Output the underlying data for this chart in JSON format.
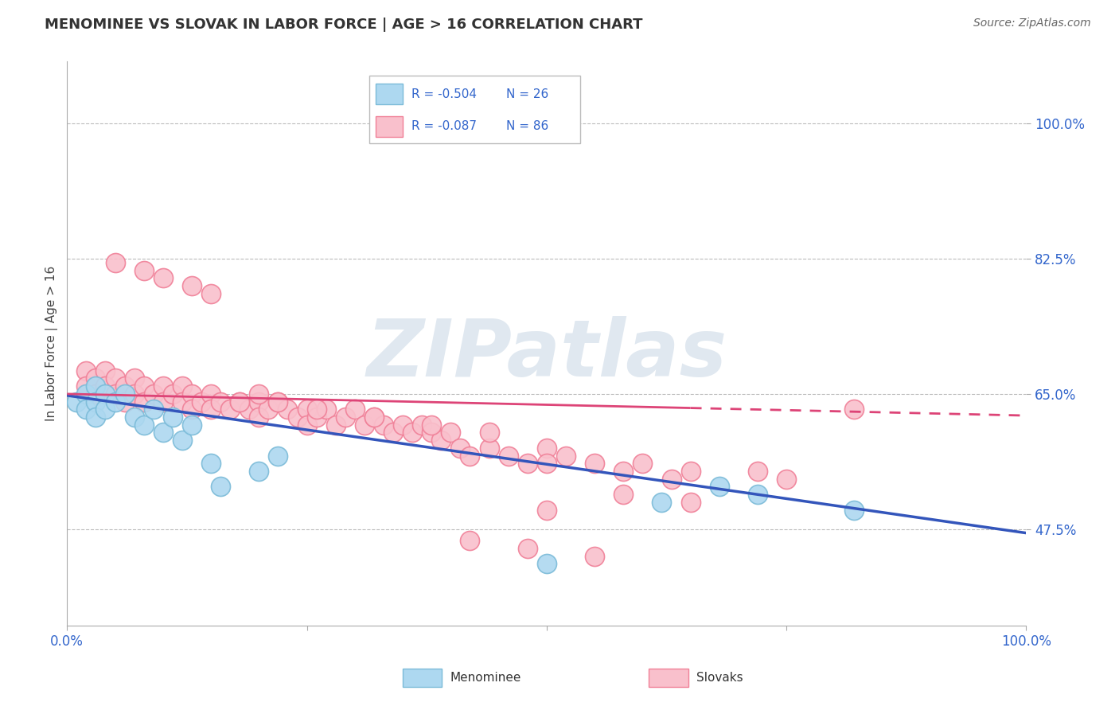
{
  "title": "MENOMINEE VS SLOVAK IN LABOR FORCE | AGE > 16 CORRELATION CHART",
  "source": "Source: ZipAtlas.com",
  "ylabel": "In Labor Force | Age > 16",
  "xlim": [
    0.0,
    1.0
  ],
  "ylim": [
    0.35,
    1.08
  ],
  "ytick_positions": [
    0.475,
    0.65,
    0.825,
    1.0
  ],
  "ytick_labels": [
    "47.5%",
    "65.0%",
    "82.5%",
    "100.0%"
  ],
  "menominee_color": "#ADD8F0",
  "menominee_edge": "#7BBBD8",
  "slovak_color": "#F9C0CC",
  "slovak_edge": "#F08098",
  "line_blue": "#3355BB",
  "line_pink": "#DD4477",
  "R_menominee": "-0.504",
  "N_menominee": "26",
  "R_slovak": "-0.087",
  "N_slovak": "86",
  "legend_label_1": "Menominee",
  "legend_label_2": "Slovaks",
  "watermark": "ZIPatlas",
  "background": "#FFFFFF",
  "grid_color": "#BBBBBB",
  "blue_intercept": 0.648,
  "blue_slope": -0.178,
  "pink_intercept": 0.65,
  "pink_slope": -0.028,
  "menominee_x": [
    0.01,
    0.02,
    0.02,
    0.03,
    0.03,
    0.03,
    0.04,
    0.04,
    0.05,
    0.06,
    0.07,
    0.08,
    0.09,
    0.1,
    0.11,
    0.12,
    0.13,
    0.15,
    0.16,
    0.2,
    0.22,
    0.5,
    0.62,
    0.68,
    0.72,
    0.82
  ],
  "menominee_y": [
    0.64,
    0.65,
    0.63,
    0.66,
    0.64,
    0.62,
    0.65,
    0.63,
    0.64,
    0.65,
    0.62,
    0.61,
    0.63,
    0.6,
    0.62,
    0.59,
    0.61,
    0.56,
    0.53,
    0.55,
    0.57,
    0.43,
    0.51,
    0.53,
    0.52,
    0.5
  ],
  "slovak_x": [
    0.02,
    0.02,
    0.03,
    0.03,
    0.04,
    0.04,
    0.05,
    0.05,
    0.06,
    0.06,
    0.07,
    0.07,
    0.08,
    0.08,
    0.09,
    0.1,
    0.1,
    0.11,
    0.12,
    0.12,
    0.13,
    0.13,
    0.14,
    0.15,
    0.15,
    0.16,
    0.17,
    0.18,
    0.19,
    0.2,
    0.2,
    0.21,
    0.22,
    0.23,
    0.24,
    0.25,
    0.25,
    0.26,
    0.27,
    0.28,
    0.29,
    0.3,
    0.31,
    0.32,
    0.33,
    0.34,
    0.35,
    0.36,
    0.37,
    0.38,
    0.39,
    0.4,
    0.41,
    0.42,
    0.44,
    0.46,
    0.48,
    0.5,
    0.5,
    0.52,
    0.55,
    0.58,
    0.6,
    0.63,
    0.65,
    0.72,
    0.75,
    0.05,
    0.08,
    0.1,
    0.13,
    0.15,
    0.18,
    0.2,
    0.22,
    0.26,
    0.32,
    0.38,
    0.44,
    0.5,
    0.58,
    0.65,
    0.42,
    0.48,
    0.55,
    0.82
  ],
  "slovak_y": [
    0.68,
    0.66,
    0.67,
    0.65,
    0.68,
    0.66,
    0.67,
    0.65,
    0.66,
    0.64,
    0.67,
    0.65,
    0.66,
    0.64,
    0.65,
    0.66,
    0.64,
    0.65,
    0.66,
    0.64,
    0.65,
    0.63,
    0.64,
    0.65,
    0.63,
    0.64,
    0.63,
    0.64,
    0.63,
    0.64,
    0.62,
    0.63,
    0.64,
    0.63,
    0.62,
    0.63,
    0.61,
    0.62,
    0.63,
    0.61,
    0.62,
    0.63,
    0.61,
    0.62,
    0.61,
    0.6,
    0.61,
    0.6,
    0.61,
    0.6,
    0.59,
    0.6,
    0.58,
    0.57,
    0.58,
    0.57,
    0.56,
    0.58,
    0.56,
    0.57,
    0.56,
    0.55,
    0.56,
    0.54,
    0.55,
    0.55,
    0.54,
    0.82,
    0.81,
    0.8,
    0.79,
    0.78,
    0.64,
    0.65,
    0.64,
    0.63,
    0.62,
    0.61,
    0.6,
    0.5,
    0.52,
    0.51,
    0.46,
    0.45,
    0.44,
    0.63
  ]
}
